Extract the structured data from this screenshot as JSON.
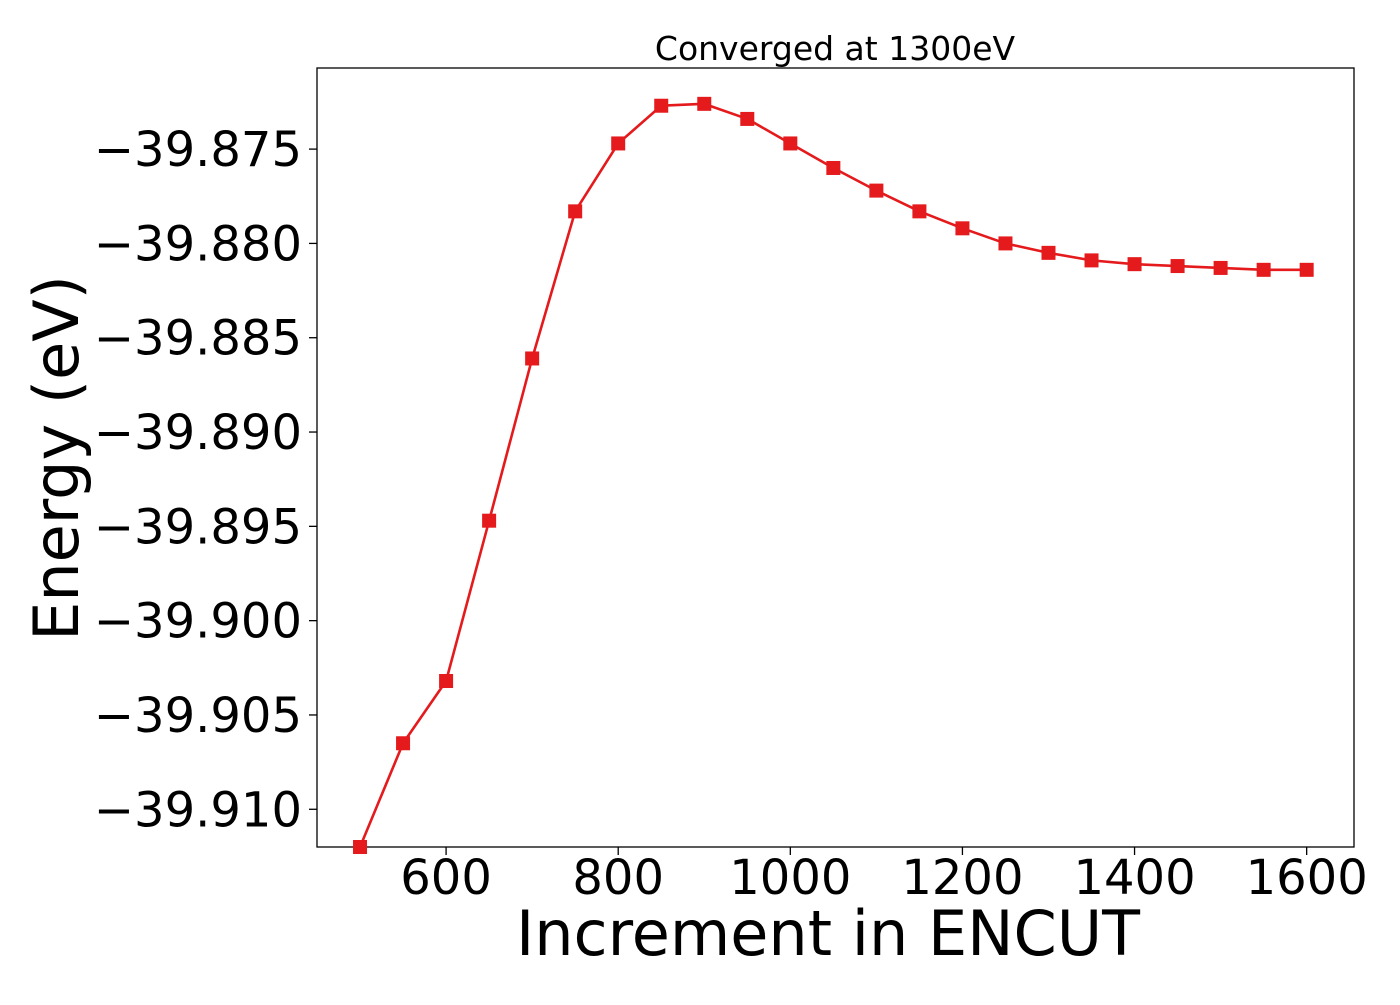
{
  "chart_data": {
    "type": "line",
    "title": "Converged at 1300eV",
    "xlabel": "Increment in ENCUT",
    "ylabel": "Energy (eV)",
    "xlim": [
      450,
      1655
    ],
    "ylim": [
      -39.912,
      -39.8707
    ],
    "xticks": [
      600,
      800,
      1000,
      1200,
      1400,
      1600
    ],
    "xtick_labels": [
      "600",
      "800",
      "1000",
      "1200",
      "1400",
      "1600"
    ],
    "yticks": [
      -39.875,
      -39.88,
      -39.885,
      -39.89,
      -39.895,
      -39.9,
      -39.905,
      -39.91
    ],
    "ytick_labels": [
      "−39.875",
      "−39.880",
      "−39.885",
      "−39.890",
      "−39.895",
      "−39.900",
      "−39.905",
      "−39.910"
    ],
    "grid": false,
    "series": [
      {
        "color": "#e41a1c",
        "marker": "square",
        "x": [
          500,
          550,
          600,
          650,
          700,
          750,
          800,
          850,
          900,
          950,
          1000,
          1050,
          1100,
          1150,
          1200,
          1250,
          1300,
          1350,
          1400,
          1450,
          1500,
          1550,
          1600
        ],
        "y": [
          -39.912,
          -39.9065,
          -39.9032,
          -39.8947,
          -39.8861,
          -39.8783,
          -39.8747,
          -39.8727,
          -39.8726,
          -39.8734,
          -39.8747,
          -39.876,
          -39.8772,
          -39.8783,
          -39.8792,
          -39.88,
          -39.8805,
          -39.8809,
          -39.8811,
          -39.8812,
          -39.8813,
          -39.8814,
          -39.8814
        ]
      }
    ]
  }
}
